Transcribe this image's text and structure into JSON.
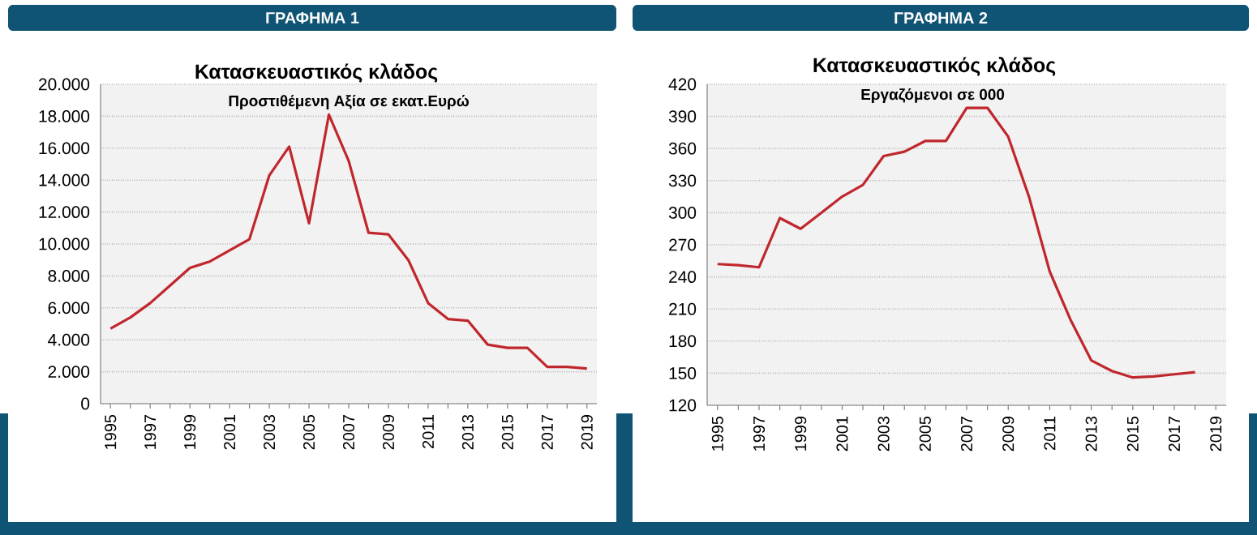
{
  "chart_data": [
    {
      "type": "line",
      "title": "ΓΡΑΦΗΜΑ 1",
      "subtitle": "Κατασκευαστικός κλάδος",
      "annotations": [
        "Προστιθέμενη Αξία σε εκατ.Ευρώ"
      ],
      "categories": [
        "1995",
        null,
        "1997",
        null,
        "1999",
        null,
        "2001",
        null,
        "2003",
        null,
        "2005",
        null,
        "2007",
        null,
        "2009",
        null,
        "2011",
        null,
        "2013",
        null,
        "2015",
        null,
        "2017",
        null,
        "2019"
      ],
      "values": [
        4700,
        5400,
        6300,
        7400,
        8500,
        8900,
        9600,
        10300,
        14300,
        16100,
        11300,
        18100,
        15200,
        10700,
        10600,
        9000,
        6300,
        5300,
        5200,
        3700,
        3500,
        3500,
        2300,
        2300,
        2200
      ],
      "color": "#c0272d",
      "ylim": [
        0,
        20000
      ],
      "yticks": [
        0,
        {
          "value": 2000,
          "label": "2.000"
        },
        {
          "value": 4000,
          "label": "4.000"
        },
        {
          "value": 6000,
          "label": "6.000"
        },
        {
          "value": 8000,
          "label": "8.000"
        },
        {
          "value": 10000,
          "label": "10.000"
        },
        {
          "value": 12000,
          "label": "12.000"
        },
        {
          "value": 14000,
          "label": "14.000"
        },
        {
          "value": 16000,
          "label": "16.000"
        },
        {
          "value": 18000,
          "label": "18.000"
        },
        {
          "value": 20000,
          "label": "20.000"
        }
      ],
      "grid": "y"
    },
    {
      "type": "line",
      "title": "ΓΡΑΦΗΜΑ 2",
      "subtitle": "Κατασκευαστικός κλάδος",
      "annotations": [
        "Εργαζόμενοι σε 000"
      ],
      "categories": [
        "1995",
        null,
        "1997",
        null,
        "1999",
        null,
        "2001",
        null,
        "2003",
        null,
        "2005",
        null,
        "2007",
        null,
        "2009",
        null,
        "2011",
        null,
        "2013",
        null,
        "2015",
        null,
        "2017",
        null,
        "2019"
      ],
      "values": [
        252,
        251,
        249,
        295,
        285,
        300,
        315,
        326,
        353,
        357,
        367,
        367,
        398,
        398,
        371,
        315,
        245,
        200,
        162,
        152,
        146,
        147,
        149,
        151,
        null
      ],
      "color": "#c0272d",
      "ylim": [
        120,
        420
      ],
      "yticks": [
        120,
        150,
        180,
        210,
        240,
        270,
        300,
        330,
        360,
        390,
        420
      ],
      "grid": "y"
    }
  ]
}
